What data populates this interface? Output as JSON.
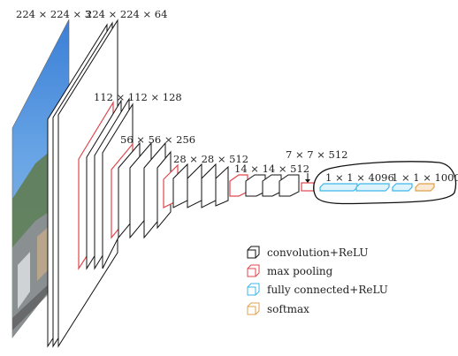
{
  "diagram": {
    "input_label": "224 × 224 × 3",
    "stage_labels": [
      "224 × 224 × 64",
      "112 × 112 × 128",
      "56 × 56 × 256",
      "28 × 28 × 512",
      "14 × 14 × 512",
      "7 × 7 × 512",
      "1 × 1 × 4096",
      "1 × 1 × 1000"
    ],
    "legend": [
      {
        "label": "convolution+ReLU",
        "color": "#111111"
      },
      {
        "label": "max pooling",
        "color": "#e0474c"
      },
      {
        "label": "fully connected+ReLU",
        "color": "#3fb6e8"
      },
      {
        "label": "softmax",
        "color": "#e0a050"
      }
    ],
    "colors": {
      "conv": "#111111",
      "pool": "#e0474c",
      "fc": "#3fb6e8",
      "softmax": "#e0a050",
      "highlight_loop": "#111111"
    }
  }
}
